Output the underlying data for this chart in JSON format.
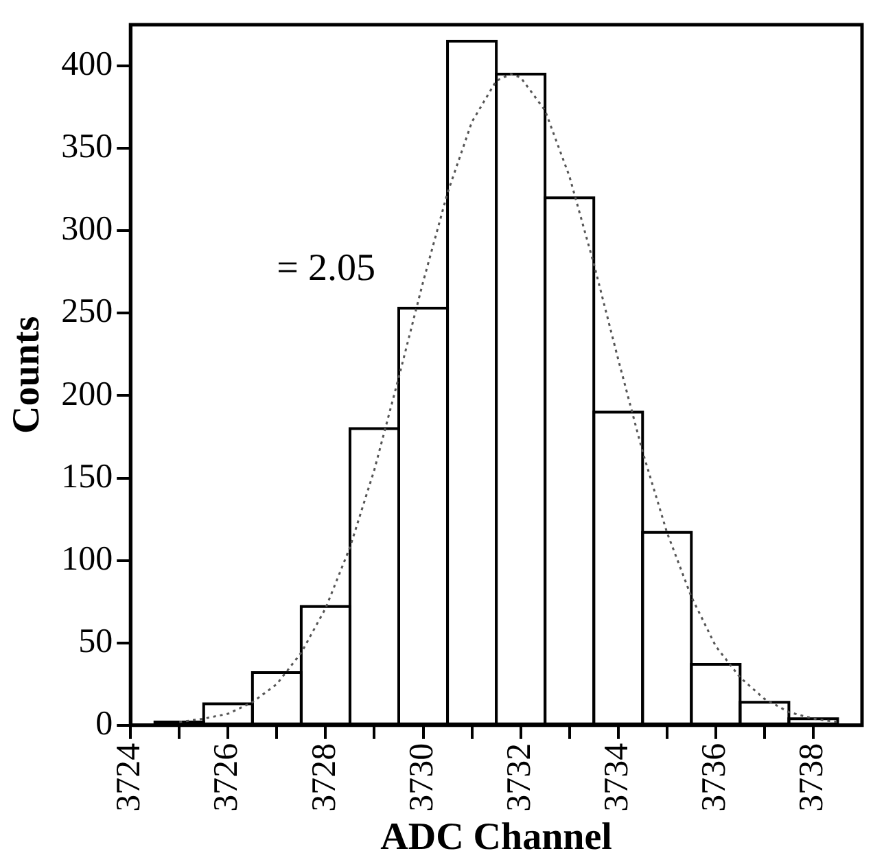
{
  "chart_data": {
    "type": "histogram",
    "xlabel": "ADC Channel",
    "ylabel": "Counts",
    "bins": [
      3724.5,
      3725.5,
      3726.5,
      3727.5,
      3728.5,
      3729.5,
      3730.5,
      3731.5,
      3732.5,
      3733.5,
      3734.5,
      3735.5,
      3736.5,
      3737.5,
      3738.5
    ],
    "values": [
      2,
      13,
      32,
      72,
      180,
      253,
      415,
      395,
      320,
      190,
      117,
      37,
      14,
      4
    ],
    "color": "#000000",
    "series": [
      {
        "type": "line",
        "color": "#555555",
        "line_style": "dotted",
        "marker": "none",
        "x": [
          3725,
          3725.5,
          3726,
          3726.5,
          3727,
          3727.5,
          3728,
          3728.5,
          3729,
          3729.5,
          3730,
          3730.5,
          3731,
          3731.5,
          3731.8,
          3732,
          3732.5,
          3733,
          3733.5,
          3734,
          3734.5,
          3735,
          3735.5,
          3736,
          3736.5,
          3737,
          3737.5,
          3738,
          3738.5
        ],
        "values": [
          2,
          4,
          7,
          14,
          25,
          44,
          71,
          108,
          155,
          211,
          269,
          323,
          366,
          391,
          395,
          393,
          373,
          333,
          280,
          222,
          166,
          117,
          78,
          48,
          29,
          16,
          8,
          4,
          2
        ]
      }
    ],
    "xlim": [
      3724,
      3739
    ],
    "ylim": [
      0,
      425
    ],
    "xticks": [
      3724,
      {
        "value": 3725,
        "label": null
      },
      3726,
      {
        "value": 3727,
        "label": null
      },
      3728,
      {
        "value": 3729,
        "label": null
      },
      3730,
      {
        "value": 3731,
        "label": null
      },
      3732,
      {
        "value": 3733,
        "label": null
      },
      3734,
      {
        "value": 3735,
        "label": null
      },
      3736,
      {
        "value": 3737,
        "label": null
      },
      3738
    ],
    "yticks": [
      0,
      50,
      100,
      150,
      200,
      250,
      300,
      350,
      400
    ],
    "annotations": [
      "= 2.05"
    ],
    "grid": false,
    "legend": false
  }
}
